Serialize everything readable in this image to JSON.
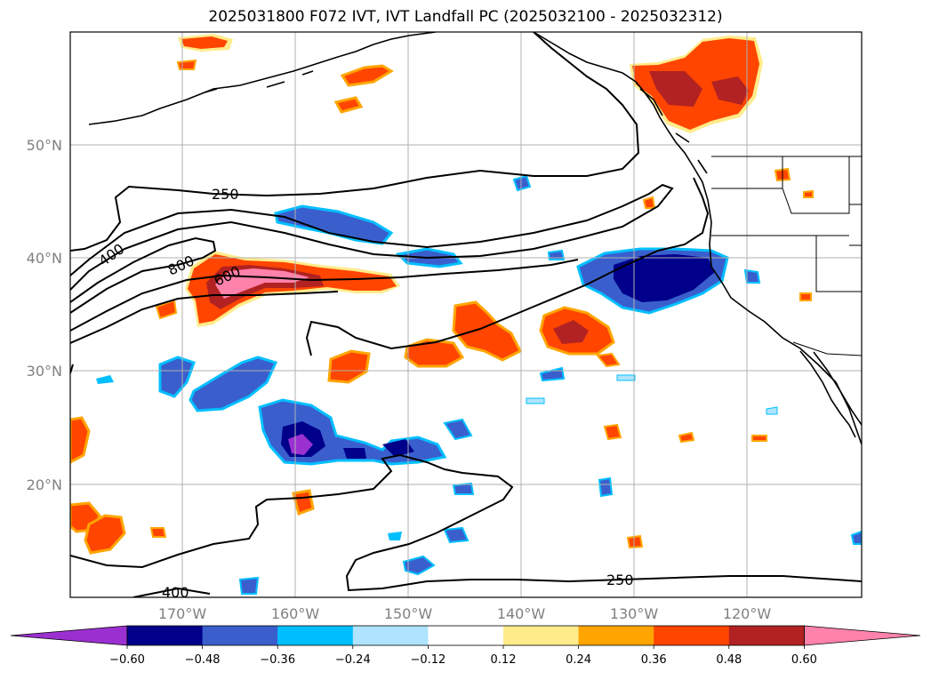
{
  "title": "2025031800 F072 IVT, IVT Landfall PC (2025032100 - 2025032312)",
  "lat_labels": [
    "50°N",
    "40°N",
    "30°N",
    "20°N"
  ],
  "lon_labels": [
    "170°W",
    "160°W",
    "150°W",
    "140°W",
    "130°W",
    "120°W"
  ],
  "contour_labels": [
    "250",
    "400",
    "800",
    "600",
    "250",
    "400"
  ],
  "colorbar": {
    "ticks": [
      "−0.60",
      "−0.48",
      "−0.36",
      "−0.24",
      "−0.12",
      "0.12",
      "0.24",
      "0.36",
      "0.48",
      "0.60"
    ],
    "colors": [
      "#9b30d0",
      "#00008b",
      "#3a5fcd",
      "#00bfff",
      "#aee4ff",
      "#ffffff",
      "#ffeb8a",
      "#ffa500",
      "#ff4500",
      "#b22222",
      "#ff82ab"
    ]
  },
  "colors": {
    "neg_extreme": "#9b30d0",
    "neg_strong": "#00008b",
    "neg_mid": "#3a5fcd",
    "neg_light": "#00bfff",
    "neg_faint": "#aee4ff",
    "pos_faint": "#ffeb8a",
    "pos_light": "#ffa500",
    "pos_mid": "#ff4500",
    "pos_strong": "#b22222",
    "pos_extreme": "#ff82ab"
  }
}
